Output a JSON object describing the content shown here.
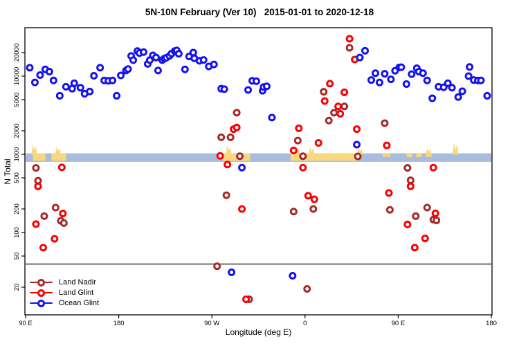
{
  "title": "5N-10N February (Ver 10)   2015-01-01 to 2020-12-18",
  "x_axis": {
    "label": "Longitude (deg E)",
    "ticks": [
      {
        "pos": 90,
        "label": "90 E"
      },
      {
        "pos": 180,
        "label": "180"
      },
      {
        "pos": 270,
        "label": "90 W"
      },
      {
        "pos": 360,
        "label": "0"
      },
      {
        "pos": 450,
        "label": "90 E"
      },
      {
        "pos": 540,
        "label": "180"
      }
    ]
  },
  "y_axis": {
    "label": "N Total",
    "ticks": [
      20,
      50,
      100,
      200,
      500,
      1000,
      2000,
      5000,
      10000,
      20000
    ]
  },
  "legend": {
    "items": [
      {
        "label": "Land Nadir",
        "color": "#A52A2A"
      },
      {
        "label": "Land Glint",
        "color": "#FB0000"
      },
      {
        "label": "Ocean Glint",
        "color": "#1412EF"
      }
    ]
  },
  "annotations": {
    "band": {
      "value_from": 800,
      "value_to": 1030,
      "color": "#A8BDDE"
    },
    "yellow_color": "#F8D87E",
    "yellow_segments": [
      {
        "from": 97,
        "to": 109,
        "partial": false
      },
      {
        "from": 115,
        "to": 129,
        "partial": false
      },
      {
        "from": 281,
        "to": 307,
        "partial": false
      },
      {
        "from": 346,
        "to": 411,
        "partial": false
      },
      {
        "from": 435,
        "to": 443,
        "partial": true
      },
      {
        "from": 458,
        "to": 486,
        "partial": true
      }
    ],
    "wisps": [
      {
        "lon": 98,
        "h": 13
      },
      {
        "lon": 121,
        "h": 9
      },
      {
        "lon": 286,
        "h": 11
      },
      {
        "lon": 352,
        "h": 7
      },
      {
        "lon": 366,
        "h": 9
      },
      {
        "lon": 413,
        "h": 8
      },
      {
        "lon": 479,
        "h": 7
      },
      {
        "lon": 505,
        "h": 16
      }
    ],
    "threshold_line": {
      "value": 39.5,
      "color": "#222222"
    }
  },
  "chart_data": {
    "type": "scatter",
    "title": "5N-10N February (Ver 10)   2015-01-01 to 2020-12-18",
    "xlabel": "Longitude (deg E)",
    "ylabel": "N Total",
    "x_axis_note": "longitude plotted eastward from 90E; 90..540 wraps 90E-180-90W-0-90E-180",
    "xlim": [
      90,
      540
    ],
    "ylim": [
      8.85,
      41600
    ],
    "y_scale": "log",
    "series": [
      {
        "name": "Land Nadir",
        "color": "#A52A2A",
        "points": [
          [
            100,
            670
          ],
          [
            102,
            460
          ],
          [
            108,
            162
          ],
          [
            119,
            208
          ],
          [
            124,
            141
          ],
          [
            127,
            132
          ],
          [
            275,
            37
          ],
          [
            279,
            1650
          ],
          [
            284,
            300
          ],
          [
            288,
            1650
          ],
          [
            294,
            3400
          ],
          [
            297,
            945
          ],
          [
            306,
            14
          ],
          [
            349,
            185
          ],
          [
            353,
            1500
          ],
          [
            358,
            945
          ],
          [
            362,
            19
          ],
          [
            368,
            200
          ],
          [
            378,
            6300
          ],
          [
            383,
            2700
          ],
          [
            388,
            3400
          ],
          [
            398,
            4100
          ],
          [
            403,
            23000
          ],
          [
            411,
            940
          ],
          [
            437,
            2500
          ],
          [
            442,
            195
          ],
          [
            459,
            670
          ],
          [
            462,
            465
          ],
          [
            467,
            162
          ],
          [
            478,
            208
          ],
          [
            484,
            146
          ],
          [
            487,
            143
          ]
        ]
      },
      {
        "name": "Land Glint",
        "color": "#FB0000",
        "points": [
          [
            100,
            128
          ],
          [
            102,
            390
          ],
          [
            107,
            64
          ],
          [
            118,
            83
          ],
          [
            125,
            680
          ],
          [
            126,
            175
          ],
          [
            278,
            955
          ],
          [
            285,
            740
          ],
          [
            291,
            2100
          ],
          [
            294,
            2200
          ],
          [
            299,
            200
          ],
          [
            303,
            14
          ],
          [
            349,
            1120
          ],
          [
            354,
            2150
          ],
          [
            358,
            675
          ],
          [
            363,
            295
          ],
          [
            369,
            266
          ],
          [
            373,
            1400
          ],
          [
            379,
            4800
          ],
          [
            384,
            8000
          ],
          [
            392,
            4100
          ],
          [
            394,
            3300
          ],
          [
            398,
            6200
          ],
          [
            403,
            30000
          ],
          [
            408,
            16300
          ],
          [
            410,
            2100
          ],
          [
            439,
            1300
          ],
          [
            441,
            320
          ],
          [
            459,
            127
          ],
          [
            462,
            390
          ],
          [
            466,
            64
          ],
          [
            476,
            84
          ],
          [
            484,
            675
          ],
          [
            486,
            176
          ]
        ]
      },
      {
        "name": "Ocean Glint",
        "color": "#1412EF",
        "points": [
          [
            94,
            12800
          ],
          [
            99,
            8300
          ],
          [
            104,
            10300
          ],
          [
            109,
            12200
          ],
          [
            113,
            11400
          ],
          [
            117,
            8800
          ],
          [
            123,
            5600
          ],
          [
            129,
            7300
          ],
          [
            135,
            6900
          ],
          [
            137,
            8100
          ],
          [
            143,
            7100
          ],
          [
            147,
            5950
          ],
          [
            152,
            6350
          ],
          [
            156,
            10100
          ],
          [
            162,
            12800
          ],
          [
            166,
            8800
          ],
          [
            170,
            8700
          ],
          [
            174,
            8800
          ],
          [
            178,
            5600
          ],
          [
            182,
            10200
          ],
          [
            187,
            11800
          ],
          [
            189,
            12300
          ],
          [
            192,
            18100
          ],
          [
            194,
            16000
          ],
          [
            198,
            20900
          ],
          [
            200,
            19700
          ],
          [
            204,
            20300
          ],
          [
            208,
            14300
          ],
          [
            210,
            16000
          ],
          [
            213,
            18400
          ],
          [
            216,
            17300
          ],
          [
            218,
            11800
          ],
          [
            222,
            16000
          ],
          [
            224,
            16700
          ],
          [
            226,
            17200
          ],
          [
            229,
            18100
          ],
          [
            231,
            19400
          ],
          [
            234,
            20900
          ],
          [
            236,
            21300
          ],
          [
            238,
            19300
          ],
          [
            244,
            12200
          ],
          [
            248,
            17800
          ],
          [
            252,
            20000
          ],
          [
            253,
            16900
          ],
          [
            258,
            15700
          ],
          [
            262,
            16100
          ],
          [
            267,
            13300
          ],
          [
            272,
            14100
          ],
          [
            279,
            6900
          ],
          [
            282,
            6800
          ],
          [
            289,
            31
          ],
          [
            299,
            675
          ],
          [
            305,
            6650
          ],
          [
            309,
            8700
          ],
          [
            313,
            8600
          ],
          [
            319,
            6500
          ],
          [
            320,
            7250
          ],
          [
            323,
            7400
          ],
          [
            328,
            2950
          ],
          [
            348,
            28
          ],
          [
            410,
            1330
          ],
          [
            413,
            17300
          ],
          [
            418,
            21100
          ],
          [
            424,
            8900
          ],
          [
            428,
            10900
          ],
          [
            432,
            8300
          ],
          [
            437,
            10700
          ],
          [
            443,
            9100
          ],
          [
            447,
            11700
          ],
          [
            451,
            12900
          ],
          [
            453,
            13000
          ],
          [
            458,
            7900
          ],
          [
            463,
            10600
          ],
          [
            468,
            12600
          ],
          [
            470,
            11400
          ],
          [
            474,
            10900
          ],
          [
            478,
            8800
          ],
          [
            483,
            5200
          ],
          [
            489,
            7300
          ],
          [
            494,
            7200
          ],
          [
            498,
            8100
          ],
          [
            502,
            7100
          ],
          [
            508,
            5400
          ],
          [
            512,
            6400
          ],
          [
            518,
            10000
          ],
          [
            519,
            13100
          ],
          [
            523,
            8900
          ],
          [
            527,
            8800
          ],
          [
            530,
            8800
          ],
          [
            536,
            5600
          ]
        ]
      }
    ]
  }
}
